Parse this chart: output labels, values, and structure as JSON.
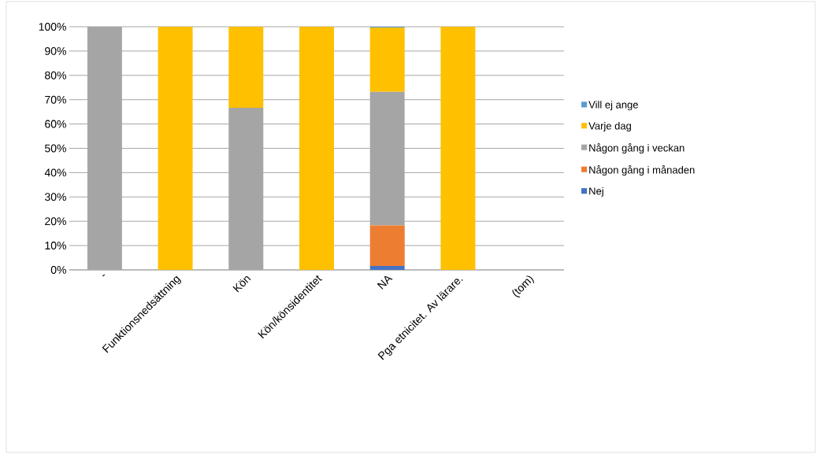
{
  "chart_data": {
    "type": "bar",
    "stacked": true,
    "categories": [
      "-",
      "Funktionsnedsättning",
      "Kön",
      "Kön/könsidentitet",
      "NA",
      "Pga etnicitet. Av lärare.",
      "(tom)"
    ],
    "series": [
      {
        "name": "Nej",
        "color": "#4472c4",
        "values": [
          0,
          0,
          0,
          0,
          1.6,
          0,
          0
        ]
      },
      {
        "name": "Någon gång i månaden",
        "color": "#ed7d31",
        "values": [
          0,
          0,
          0,
          0,
          16.7,
          0,
          0
        ]
      },
      {
        "name": "Någon gång i veckan",
        "color": "#a5a5a5",
        "values": [
          100,
          0,
          66.7,
          0,
          54.9,
          0,
          0
        ]
      },
      {
        "name": "Varje dag",
        "color": "#ffc000",
        "values": [
          0,
          100,
          33.3,
          100,
          26.5,
          100,
          0
        ]
      },
      {
        "name": "Vill ej ange",
        "color": "#5b9bd5",
        "values": [
          0,
          0,
          0,
          0,
          0.3,
          0,
          0
        ]
      }
    ],
    "ylim": [
      0,
      100
    ],
    "yticks": [
      {
        "value": 0,
        "label": "0%"
      },
      {
        "value": 10,
        "label": "10%"
      },
      {
        "value": 20,
        "label": "20%"
      },
      {
        "value": 30,
        "label": "30%"
      },
      {
        "value": 40,
        "label": "40%"
      },
      {
        "value": 50,
        "label": "50%"
      },
      {
        "value": 60,
        "label": "60%"
      },
      {
        "value": 70,
        "label": "70%"
      },
      {
        "value": 80,
        "label": "80%"
      },
      {
        "value": 90,
        "label": "90%"
      },
      {
        "value": 100,
        "label": "100%"
      }
    ],
    "grid": "y",
    "legend": "right"
  }
}
